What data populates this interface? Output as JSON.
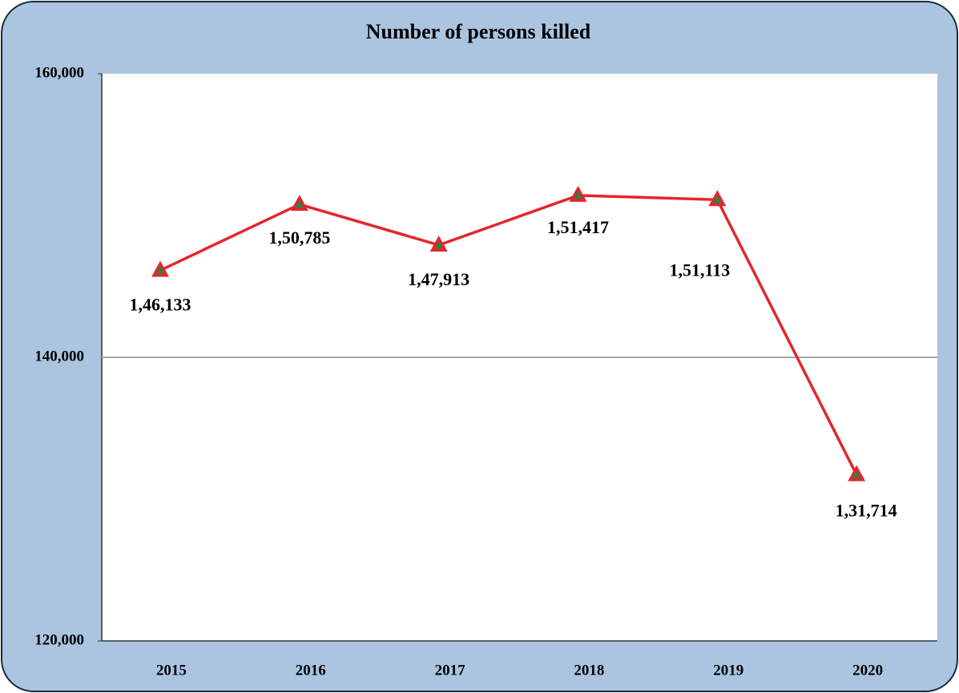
{
  "chart_data": {
    "type": "line",
    "title": "Number of persons killed",
    "categories": [
      "2015",
      "2016",
      "2017",
      "2018",
      "2019",
      "2020"
    ],
    "series": [
      {
        "name": "Number of persons killed",
        "color": "#e3262e",
        "values": [
          146133,
          150785,
          147913,
          151417,
          151113,
          131714
        ],
        "value_labels": [
          "1,46,133",
          "1,50,785",
          "1,47,913",
          "1,51,417",
          "1,51,113",
          "1,31,714"
        ]
      }
    ],
    "marker_fill": "#1e8a3a",
    "ylim": [
      120000,
      160000
    ],
    "yticks": [
      {
        "value": 120000,
        "label": "120,000"
      },
      {
        "value": 140000,
        "label": "140,000"
      },
      {
        "value": 160000,
        "label": "160,000"
      }
    ],
    "grid": true
  }
}
